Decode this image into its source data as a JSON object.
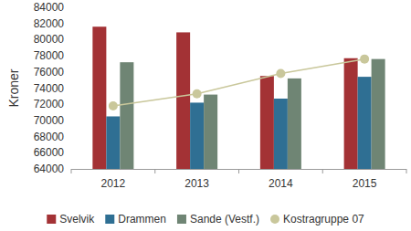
{
  "chart_data": {
    "type": "bar",
    "y_label": "Kroner",
    "categories": [
      "2012",
      "2013",
      "2014",
      "2015"
    ],
    "series": [
      {
        "name": "Svelvik",
        "color": "#a33235",
        "values": [
          81600,
          80900,
          75500,
          77700
        ]
      },
      {
        "name": "Drammen",
        "color": "#2f6f93",
        "values": [
          70500,
          72200,
          72700,
          75400
        ]
      },
      {
        "name": "Sande (Vestf.)",
        "color": "#6f8574",
        "values": [
          77200,
          73200,
          75200,
          77600
        ]
      },
      {
        "name": "Kostragruppe 07",
        "color": "#c9c79b",
        "type": "line",
        "marker": "circle",
        "values": [
          71800,
          73300,
          75800,
          77600
        ]
      }
    ],
    "ylim": [
      64000,
      84000
    ],
    "yticks": [
      64000,
      66000,
      68000,
      70000,
      72000,
      74000,
      76000,
      78000,
      80000,
      82000,
      84000
    ],
    "grid": false,
    "legend": "bottom"
  }
}
